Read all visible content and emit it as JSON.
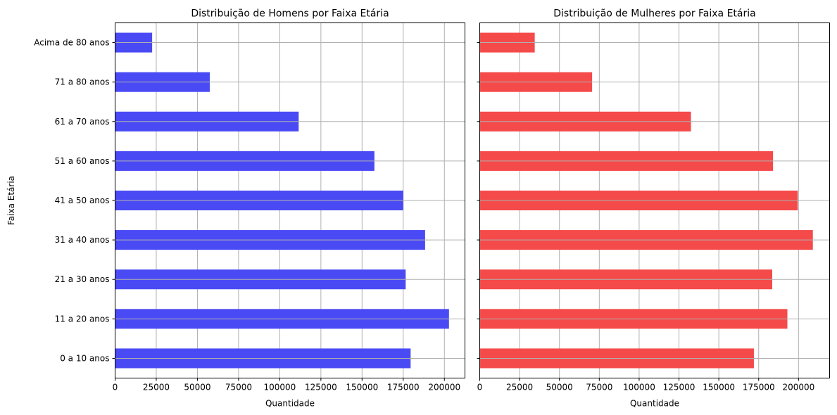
{
  "figure": {
    "ylabel": "Faixa Etária"
  },
  "chart_data": [
    {
      "type": "bar",
      "orientation": "horizontal",
      "title": "Distribuição de Homens por Faixa Etária",
      "xlabel": "Quantidade",
      "ylabel": "Faixa Etária",
      "categories": [
        "0 a 10 anos",
        "11 a 20 anos",
        "21 a 30 anos",
        "31 a 40 anos",
        "41 a 50 anos",
        "51 a 60 anos",
        "61 a 70 anos",
        "71 a 80 anos",
        "Acima de 80 anos"
      ],
      "values": [
        179500,
        202800,
        176500,
        188300,
        175000,
        157500,
        111500,
        57500,
        22500
      ],
      "color": "#4a4af5",
      "xlim": [
        0,
        212500
      ],
      "xticks": [
        0,
        25000,
        50000,
        75000,
        100000,
        125000,
        150000,
        175000,
        200000
      ],
      "grid": true
    },
    {
      "type": "bar",
      "orientation": "horizontal",
      "title": "Distribuição de Mulheres por Faixa Etária",
      "xlabel": "Quantidade",
      "ylabel": "",
      "categories": [
        "0 a 10 anos",
        "11 a 20 anos",
        "21 a 30 anos",
        "31 a 40 anos",
        "41 a 50 anos",
        "51 a 60 anos",
        "61 a 70 anos",
        "71 a 80 anos",
        "Acima de 80 anos"
      ],
      "values": [
        172000,
        193000,
        183500,
        209000,
        199500,
        184000,
        132500,
        70500,
        34500
      ],
      "color": "#f54a4a",
      "xlim": [
        0,
        219500
      ],
      "xticks": [
        0,
        25000,
        50000,
        75000,
        100000,
        125000,
        150000,
        175000,
        200000
      ],
      "grid": true
    }
  ]
}
